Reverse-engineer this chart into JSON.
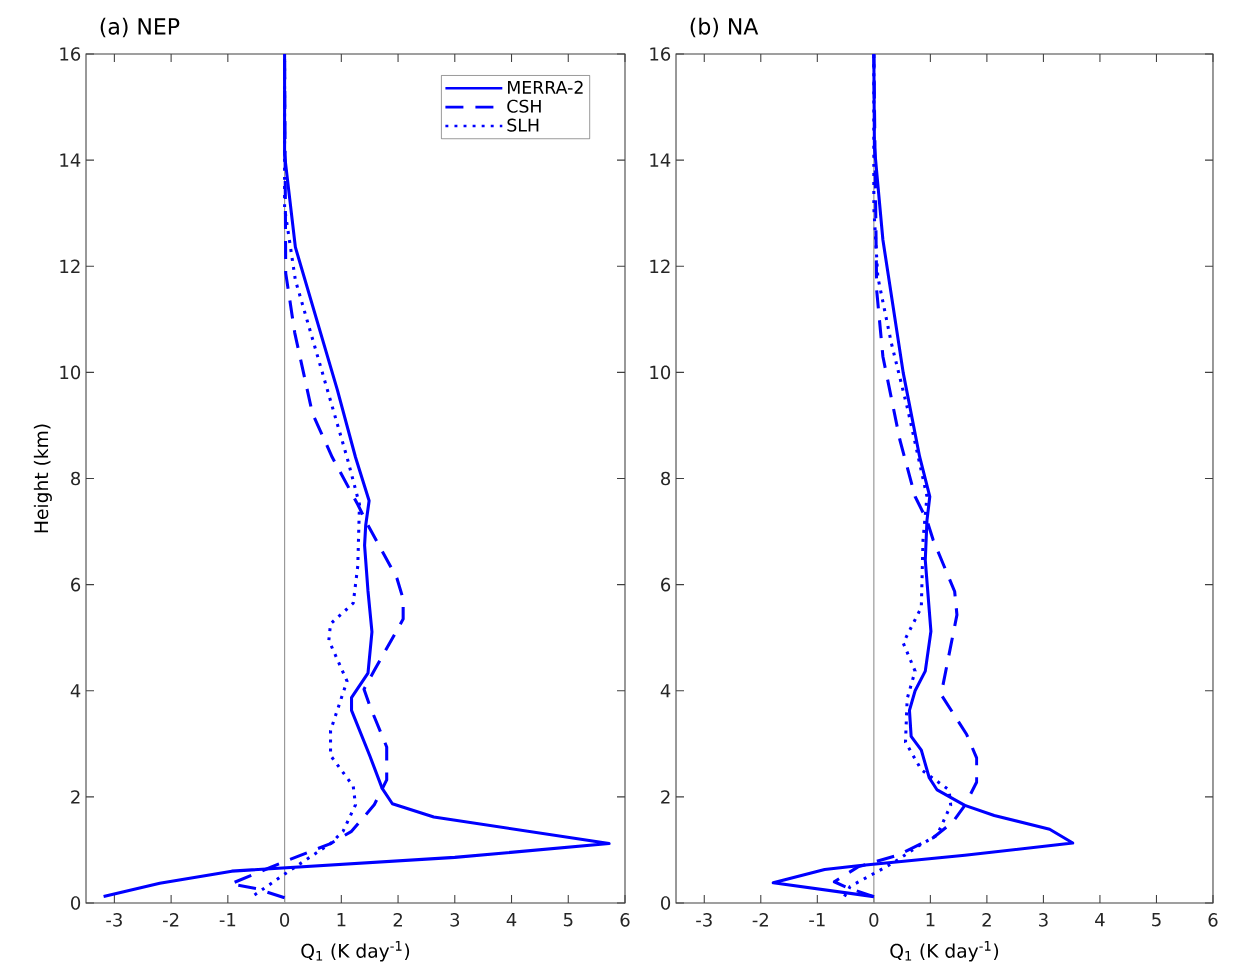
{
  "chart_data": [
    {
      "type": "line",
      "title": "(a) NEP",
      "xlabel": "Q$_{1}$ (K day$^{-1}$)",
      "ylabel": "Height (km)",
      "xlim": [
        -3.5,
        6
      ],
      "ylim": [
        0,
        16
      ],
      "xticks": [
        -3,
        -2,
        -1,
        0,
        1,
        2,
        3,
        4,
        5,
        6
      ],
      "yticks": [
        0,
        2,
        4,
        6,
        8,
        10,
        12,
        14,
        16
      ],
      "legend": "top right",
      "ref_lines": [
        {
          "axis": "x",
          "value": 0,
          "color": "#999999"
        }
      ],
      "series": [
        {
          "name": "MERRA-2",
          "color": "#0000ff",
          "line_style": "solid",
          "x": [
            -3.19,
            -2.2,
            -0.93,
            3.0,
            5.72,
            2.63,
            1.9,
            1.72,
            1.5,
            1.18,
            1.18,
            1.47,
            1.54,
            1.47,
            1.41,
            1.43,
            1.49,
            1.25,
            0.93,
            0.19,
            0,
            0
          ],
          "values": [
            0.12,
            0.37,
            0.6,
            0.86,
            1.12,
            1.62,
            1.87,
            2.16,
            2.78,
            3.63,
            3.87,
            4.33,
            5.11,
            5.88,
            6.74,
            7.12,
            7.58,
            8.4,
            9.67,
            12.36,
            14.1,
            16
          ]
        },
        {
          "name": "CSH",
          "color": "#0000ff",
          "line_style": "dashed",
          "x": [
            0,
            -0.5,
            -0.95,
            0,
            0.81,
            1.18,
            1.58,
            1.8,
            1.8,
            1.5,
            1.4,
            1.58,
            2.09,
            2.09,
            1.98,
            1.47,
            1.29,
            0.84,
            0.49,
            0.18,
            0.02,
            0
          ],
          "values": [
            0.1,
            0.27,
            0.36,
            0.78,
            1.12,
            1.35,
            1.85,
            2.32,
            2.94,
            3.72,
            4.03,
            4.38,
            5.35,
            5.73,
            6.12,
            7.12,
            7.51,
            8.4,
            9.23,
            10.74,
            11.87,
            16
          ]
        },
        {
          "name": "SLH",
          "color": "#0000ff",
          "line_style": "dotted",
          "x": [
            -0.53,
            0.09,
            0.81,
            1.03,
            1.25,
            1.21,
            0.81,
            0.81,
            1.1,
            0.78,
            0.81,
            1.21,
            1.29,
            1.32,
            1.1,
            0.67,
            0.19,
            0,
            0
          ],
          "values": [
            0.15,
            0.61,
            1.12,
            1.35,
            1.85,
            2.2,
            2.78,
            3.25,
            4.18,
            4.95,
            5.26,
            5.65,
            6.35,
            7.51,
            8.4,
            9.98,
            11.74,
            13.1,
            16
          ]
        }
      ]
    },
    {
      "type": "line",
      "title": "(b) NA",
      "xlabel": "Q$_{1}$ (K day$^{-1}$)",
      "xlim": [
        -3.5,
        6
      ],
      "ylim": [
        0,
        16
      ],
      "xticks": [
        -3,
        -2,
        -1,
        0,
        1,
        2,
        3,
        4,
        5,
        6
      ],
      "yticks": [
        0,
        2,
        4,
        6,
        8,
        10,
        12,
        14,
        16
      ],
      "ref_lines": [
        {
          "axis": "x",
          "value": 0,
          "color": "#999999"
        }
      ],
      "series": [
        {
          "color": "#0000ff",
          "line_style": "solid",
          "x": [
            0,
            -1.78,
            -0.87,
            -0.28,
            1.61,
            3.52,
            3.11,
            2.13,
            1.61,
            1.12,
            0.98,
            0.84,
            0.66,
            0.63,
            0.73,
            0.91,
            1.01,
            0.91,
            0.94,
            0.99,
            0.81,
            0.52,
            0.16,
            0.01,
            0
          ],
          "values": [
            0.12,
            0.38,
            0.63,
            0.7,
            0.9,
            1.13,
            1.39,
            1.65,
            1.84,
            2.13,
            2.36,
            2.88,
            3.14,
            3.63,
            4.0,
            4.37,
            5.12,
            6.46,
            7.21,
            7.66,
            8.41,
            9.99,
            12.5,
            14.25,
            16
          ]
        },
        {
          "color": "#0000ff",
          "line_style": "dashed",
          "x": [
            0,
            -0.45,
            -0.7,
            -0.28,
            0.42,
            1.05,
            1.4,
            1.61,
            1.82,
            1.82,
            1.64,
            1.19,
            1.47,
            1.43,
            1.05,
            0.94,
            0.73,
            0.46,
            0.16,
            0.05,
            0
          ],
          "values": [
            0.12,
            0.28,
            0.4,
            0.68,
            0.9,
            1.23,
            1.53,
            1.84,
            2.28,
            2.73,
            3.18,
            3.93,
            5.43,
            5.87,
            6.84,
            7.21,
            7.66,
            8.73,
            10.3,
            11.55,
            16
          ]
        },
        {
          "color": "#0000ff",
          "line_style": "dotted",
          "x": [
            -0.52,
            -0.42,
            0.35,
            0.77,
            1.12,
            1.36,
            1.33,
            0.84,
            0.56,
            0.59,
            0.73,
            0.52,
            0.84,
            0.87,
            0.94,
            0.6,
            0.31,
            0.07,
            0,
            0
          ],
          "values": [
            0.12,
            0.31,
            0.76,
            1.06,
            1.28,
            1.84,
            2.13,
            2.51,
            3.03,
            3.85,
            4.37,
            4.9,
            5.57,
            6.84,
            7.66,
            9.3,
            10.55,
            11.8,
            13.1,
            16
          ]
        }
      ]
    }
  ]
}
